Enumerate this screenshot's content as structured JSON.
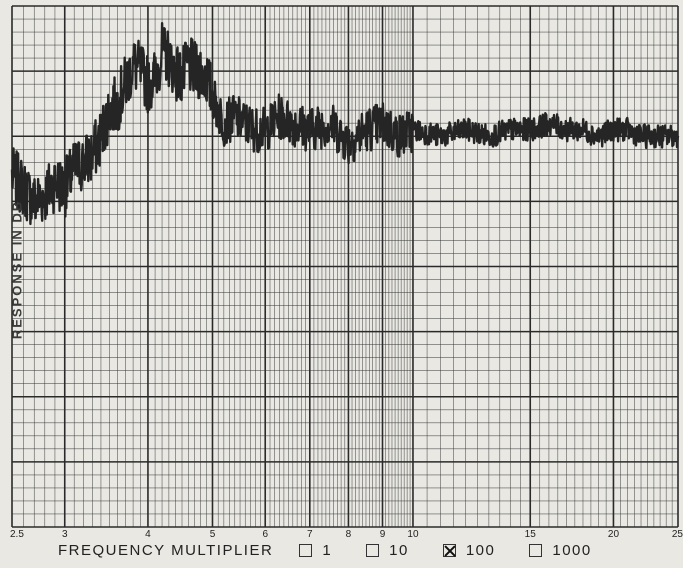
{
  "chart_data": {
    "type": "line",
    "xscale": "log",
    "xlim": [
      2.5,
      25
    ],
    "xticks": [
      "2.5",
      "3",
      "4",
      "5",
      "6",
      "7",
      "8",
      "9",
      "10",
      "15",
      "20",
      "25"
    ],
    "xtick_values": [
      2.5,
      3,
      4,
      5,
      6,
      7,
      8,
      9,
      10,
      15,
      20,
      25
    ],
    "ylabel": "RESPONSE IN DB",
    "ylim": [
      0,
      8
    ],
    "grid": true,
    "series": [
      {
        "x": [
          2.5,
          2.6,
          2.7,
          2.8,
          2.9,
          3.0,
          3.1,
          3.2,
          3.3,
          3.4,
          3.5,
          3.6,
          3.7,
          3.8,
          3.9,
          4.0,
          4.1,
          4.2,
          4.3,
          4.4,
          4.5,
          4.6,
          4.7,
          4.8,
          4.9,
          5.0,
          5.2,
          5.4,
          5.6,
          5.8,
          6.0,
          6.3,
          6.6,
          7.0,
          7.5,
          8.0,
          8.5,
          9.0,
          9.5,
          10,
          11,
          12,
          13,
          14,
          15,
          16,
          17,
          18,
          19,
          20,
          21,
          22,
          23,
          24,
          25
        ],
        "values": [
          5.4,
          5.2,
          5.0,
          5.1,
          5.3,
          5.2,
          5.5,
          5.6,
          5.7,
          6.0,
          6.4,
          6.5,
          6.8,
          7.1,
          7.0,
          6.8,
          6.9,
          7.3,
          7.2,
          7.0,
          6.9,
          7.1,
          7.0,
          7.0,
          6.9,
          6.6,
          6.2,
          6.3,
          6.2,
          6.1,
          6.1,
          6.3,
          6.2,
          6.1,
          6.2,
          5.9,
          6.1,
          6.2,
          6.0,
          6.1,
          6.0,
          6.1,
          6.0,
          6.1,
          6.1,
          6.2,
          6.1,
          6.1,
          6.0,
          6.1,
          6.1,
          6.0,
          6.0,
          6.0,
          6.0
        ]
      }
    ]
  },
  "footer": {
    "title": "FREQUENCY MULTIPLIER",
    "options": [
      {
        "label": "1",
        "checked": false
      },
      {
        "label": "10",
        "checked": false
      },
      {
        "label": "100",
        "checked": true
      },
      {
        "label": "1000",
        "checked": false
      }
    ]
  },
  "colors": {
    "paper": "#e9e8e3",
    "grid": "#2a2a2a",
    "trace": "#252525"
  }
}
